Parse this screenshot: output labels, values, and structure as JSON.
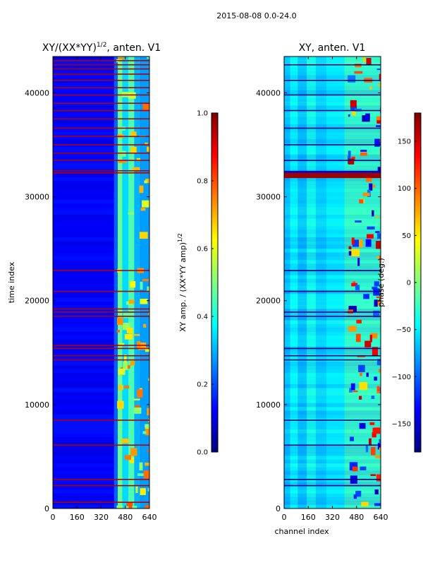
{
  "suptitle": "2015-08-08 0.0-24.0",
  "colors": {
    "background": "#ffffff",
    "frame": "#000000",
    "jet_stops": [
      "#00007f",
      "#0000ff",
      "#007fff",
      "#00ffff",
      "#7fff7f",
      "#ffff00",
      "#ff7f00",
      "#ff0000",
      "#7f0000"
    ]
  },
  "chart_data": [
    {
      "type": "heatmap",
      "title": "XY/(XX*YY)",
      "title_exponent": "1/2",
      "title_suffix": ", anten. V1",
      "xlabel": "",
      "ylabel": "time index",
      "xlim": [
        0,
        640
      ],
      "ylim": [
        0,
        43500
      ],
      "xticks": [
        0,
        160,
        320,
        480,
        640
      ],
      "xtick_labels": [
        "0",
        "160",
        "320",
        "480",
        "640"
      ],
      "yticks": [
        0,
        10000,
        20000,
        30000,
        40000
      ],
      "ytick_labels": [
        "0",
        "10000",
        "20000",
        "30000",
        "40000"
      ],
      "colormap": "jet",
      "background_level": 0.12,
      "vertical_bands": [
        {
          "x0": 405,
          "x1": 430,
          "level": 0.22
        },
        {
          "x0": 430,
          "x1": 460,
          "level": 0.48
        },
        {
          "x0": 460,
          "x1": 500,
          "level": 0.34
        },
        {
          "x0": 500,
          "x1": 540,
          "level": 0.45
        },
        {
          "x0": 540,
          "x1": 580,
          "level": 0.3
        },
        {
          "x0": 580,
          "x1": 640,
          "level": 0.28
        }
      ],
      "flagged_rows": [
        600,
        2200,
        2800,
        6100,
        8500,
        14300,
        14700,
        15400,
        15700,
        18500,
        18900,
        19200,
        20900,
        22900,
        32300,
        32500,
        33500,
        34200,
        35000,
        35800,
        36600,
        37500,
        38300,
        39000,
        39800,
        40500,
        41200,
        41800,
        42300,
        42700,
        43100
      ],
      "flagged_level": 0.95,
      "colorbar": {
        "label": "XY amp. / (XX*YY amp)",
        "label_exponent": "1/2",
        "min": 0.0,
        "max": 1.0,
        "ticks": [
          0.0,
          0.2,
          0.4,
          0.6,
          0.8,
          1.0
        ],
        "tick_labels": [
          "0.0",
          "0.2",
          "0.4",
          "0.6",
          "0.8",
          "1.0"
        ]
      }
    },
    {
      "type": "heatmap",
      "title": "XY, anten. V1",
      "xlabel": "channel index",
      "ylabel": "",
      "xlim": [
        0,
        640
      ],
      "ylim": [
        0,
        43500
      ],
      "xticks": [
        0,
        160,
        320,
        480,
        640
      ],
      "xtick_labels": [
        "0",
        "160",
        "320",
        "480",
        "640"
      ],
      "yticks": [
        0,
        10000,
        20000,
        30000,
        40000
      ],
      "ytick_labels": [
        "0",
        "10000",
        "20000",
        "30000",
        "40000"
      ],
      "colormap": "jet",
      "background_level": 0.33,
      "vertical_bands": [
        {
          "x0": 0,
          "x1": 40,
          "level": 0.3
        },
        {
          "x0": 40,
          "x1": 90,
          "level": 0.38
        },
        {
          "x0": 90,
          "x1": 150,
          "level": 0.3
        },
        {
          "x0": 150,
          "x1": 210,
          "level": 0.4
        },
        {
          "x0": 210,
          "x1": 280,
          "level": 0.32
        },
        {
          "x0": 280,
          "x1": 400,
          "level": 0.36
        },
        {
          "x0": 400,
          "x1": 640,
          "level": 0.45
        }
      ],
      "flagged_rows": [
        2200,
        2800,
        6100,
        8500,
        14300,
        14700,
        15400,
        18500,
        18900,
        20900,
        22900,
        33500,
        35000,
        36600,
        38300,
        39800,
        41200,
        42700
      ],
      "flagged_level": 0.0,
      "red_bands": [
        {
          "y0": 31800,
          "y1": 32300,
          "level": 0.97
        },
        {
          "y0": 32300,
          "y1": 32500,
          "level": 0.06
        }
      ],
      "colorbar": {
        "label": "phase (deg.)",
        "min": -180,
        "max": 180,
        "ticks": [
          -150,
          -100,
          -50,
          0,
          50,
          100,
          150
        ],
        "tick_labels": [
          "−150",
          "−100",
          "−50",
          "0",
          "50",
          "100",
          "150"
        ]
      }
    }
  ]
}
